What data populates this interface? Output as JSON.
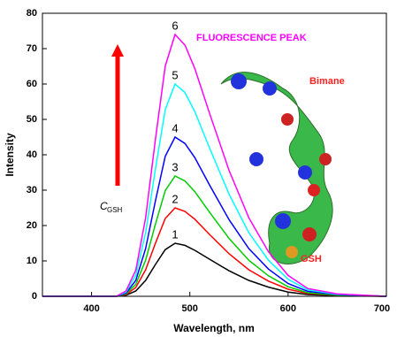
{
  "chart_data": {
    "type": "line",
    "x_label": "Wavelength, nm",
    "y_label": "Intensity",
    "x": [
      350,
      400,
      425,
      435,
      445,
      455,
      465,
      475,
      485,
      495,
      505,
      520,
      540,
      560,
      580,
      600,
      620,
      650,
      700
    ],
    "series": [
      {
        "name": "1",
        "color": "#000000",
        "values": [
          0,
          0,
          0,
          0.3,
          1.5,
          4.5,
          9,
          13.2,
          15,
          14.4,
          13,
          10.5,
          7.2,
          4.5,
          2.6,
          1.2,
          0.5,
          0.2,
          0
        ]
      },
      {
        "name": "2",
        "color": "#ff0000",
        "values": [
          0,
          0,
          0,
          0.5,
          2.5,
          7.5,
          15,
          22,
          25,
          24,
          21.8,
          17.5,
          12,
          7.5,
          4.3,
          2,
          0.8,
          0.3,
          0
        ]
      },
      {
        "name": "3",
        "color": "#00cc00",
        "values": [
          0,
          0,
          0,
          0.7,
          3.4,
          10.2,
          20.4,
          29.9,
          34,
          32.6,
          29.6,
          23.8,
          16.3,
          10.2,
          5.8,
          2.7,
          1,
          0.3,
          0
        ]
      },
      {
        "name": "4",
        "color": "#0000ff",
        "values": [
          0,
          0,
          0,
          0.9,
          4.5,
          13.5,
          27,
          39.6,
          45,
          43.2,
          39.2,
          31.5,
          21.6,
          13.5,
          7.7,
          3.6,
          1.4,
          0.5,
          0
        ]
      },
      {
        "name": "5",
        "color": "#00ffff",
        "values": [
          0,
          0,
          0,
          1.2,
          6,
          18,
          36,
          52.8,
          60,
          57.6,
          52.2,
          42,
          28.8,
          18,
          10.2,
          4.8,
          1.8,
          0.6,
          0
        ]
      },
      {
        "name": "6",
        "color": "#ff00ff",
        "values": [
          0,
          0,
          0,
          1.5,
          7.4,
          22.2,
          44.4,
          65.1,
          74,
          71,
          64.4,
          51.8,
          35.5,
          22.2,
          12.6,
          5.9,
          2.2,
          0.7,
          0
        ]
      }
    ],
    "xlim": [
      350,
      700
    ],
    "xticks": [
      400,
      500,
      600,
      700
    ],
    "ylim": [
      0,
      80
    ],
    "yticks": [
      0,
      10,
      20,
      30,
      40,
      50,
      60,
      70,
      80
    ],
    "annotations": [
      "FLUORESCENCE PEAK",
      "Bimane",
      "GSH"
    ],
    "arrow_label": "C",
    "arrow_label_sub": "GSH"
  }
}
